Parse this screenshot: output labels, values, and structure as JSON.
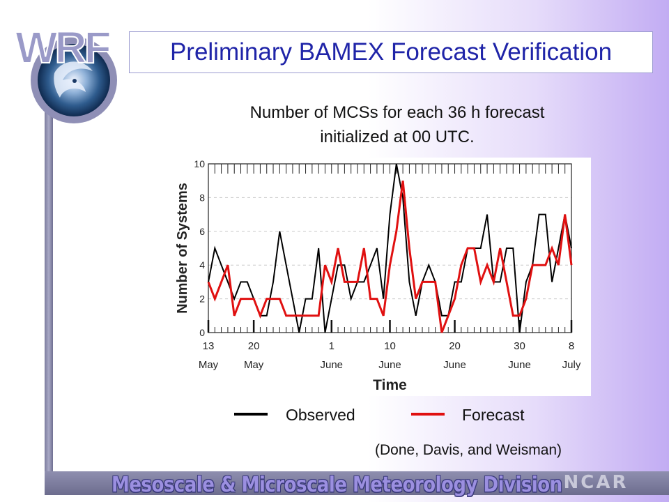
{
  "slide": {
    "title": "Preliminary BAMEX Forecast Verification",
    "subtitle_line1": "Number of MCSs for each 36 h forecast",
    "subtitle_line2": "initialized at 00 UTC.",
    "credit": "(Done, Davis, and Weisman)",
    "logo_text": "WRF",
    "banner_text": "Mesoscale & Microscale Meteorology Division",
    "ncar_text": "NCAR"
  },
  "legend": {
    "observed_label": "Observed",
    "forecast_label": "Forecast"
  },
  "colors": {
    "title": "#1f24a8",
    "observed": "#000000",
    "forecast": "#e01010"
  },
  "chart_data": {
    "type": "line",
    "ylabel": "Number of Systems",
    "xlabel": "Time",
    "ylim": [
      0,
      10
    ],
    "yticks": [
      0,
      2,
      4,
      6,
      8,
      10
    ],
    "xlim": [
      0,
      56
    ],
    "xticks": [
      {
        "x": 0,
        "line1": "13",
        "line2": "May"
      },
      {
        "x": 7,
        "line1": "20",
        "line2": "May"
      },
      {
        "x": 19,
        "line1": "1",
        "line2": "June"
      },
      {
        "x": 28,
        "line1": "10",
        "line2": "June"
      },
      {
        "x": 38,
        "line1": "20",
        "line2": "June"
      },
      {
        "x": 48,
        "line1": "30",
        "line2": "June"
      },
      {
        "x": 56,
        "line1": "8",
        "line2": "July"
      }
    ],
    "series": [
      {
        "name": "Observed",
        "color": "#000000",
        "values": [
          3,
          5,
          4,
          3,
          2,
          3,
          3,
          2,
          1,
          1,
          3,
          6,
          4,
          2,
          0,
          2,
          2,
          5,
          0,
          2,
          4,
          4,
          2,
          3,
          3,
          4,
          5,
          2,
          7,
          10,
          8,
          3,
          1,
          3,
          4,
          3,
          1,
          1,
          3,
          3,
          5,
          5,
          5,
          7,
          3,
          3,
          5,
          5,
          0,
          3,
          4,
          7,
          7,
          3,
          5,
          7,
          5
        ]
      },
      {
        "name": "Forecast",
        "color": "#e01010",
        "values": [
          3,
          2,
          3,
          4,
          1,
          2,
          2,
          2,
          1,
          2,
          2,
          2,
          1,
          1,
          1,
          1,
          1,
          1,
          4,
          3,
          5,
          3,
          3,
          3,
          5,
          2,
          2,
          1,
          4,
          6,
          9,
          5,
          2,
          3,
          3,
          3,
          0,
          1,
          2,
          4,
          5,
          5,
          3,
          4,
          3,
          5,
          3,
          1,
          1,
          2,
          4,
          4,
          4,
          5,
          4,
          7,
          4
        ]
      }
    ]
  }
}
